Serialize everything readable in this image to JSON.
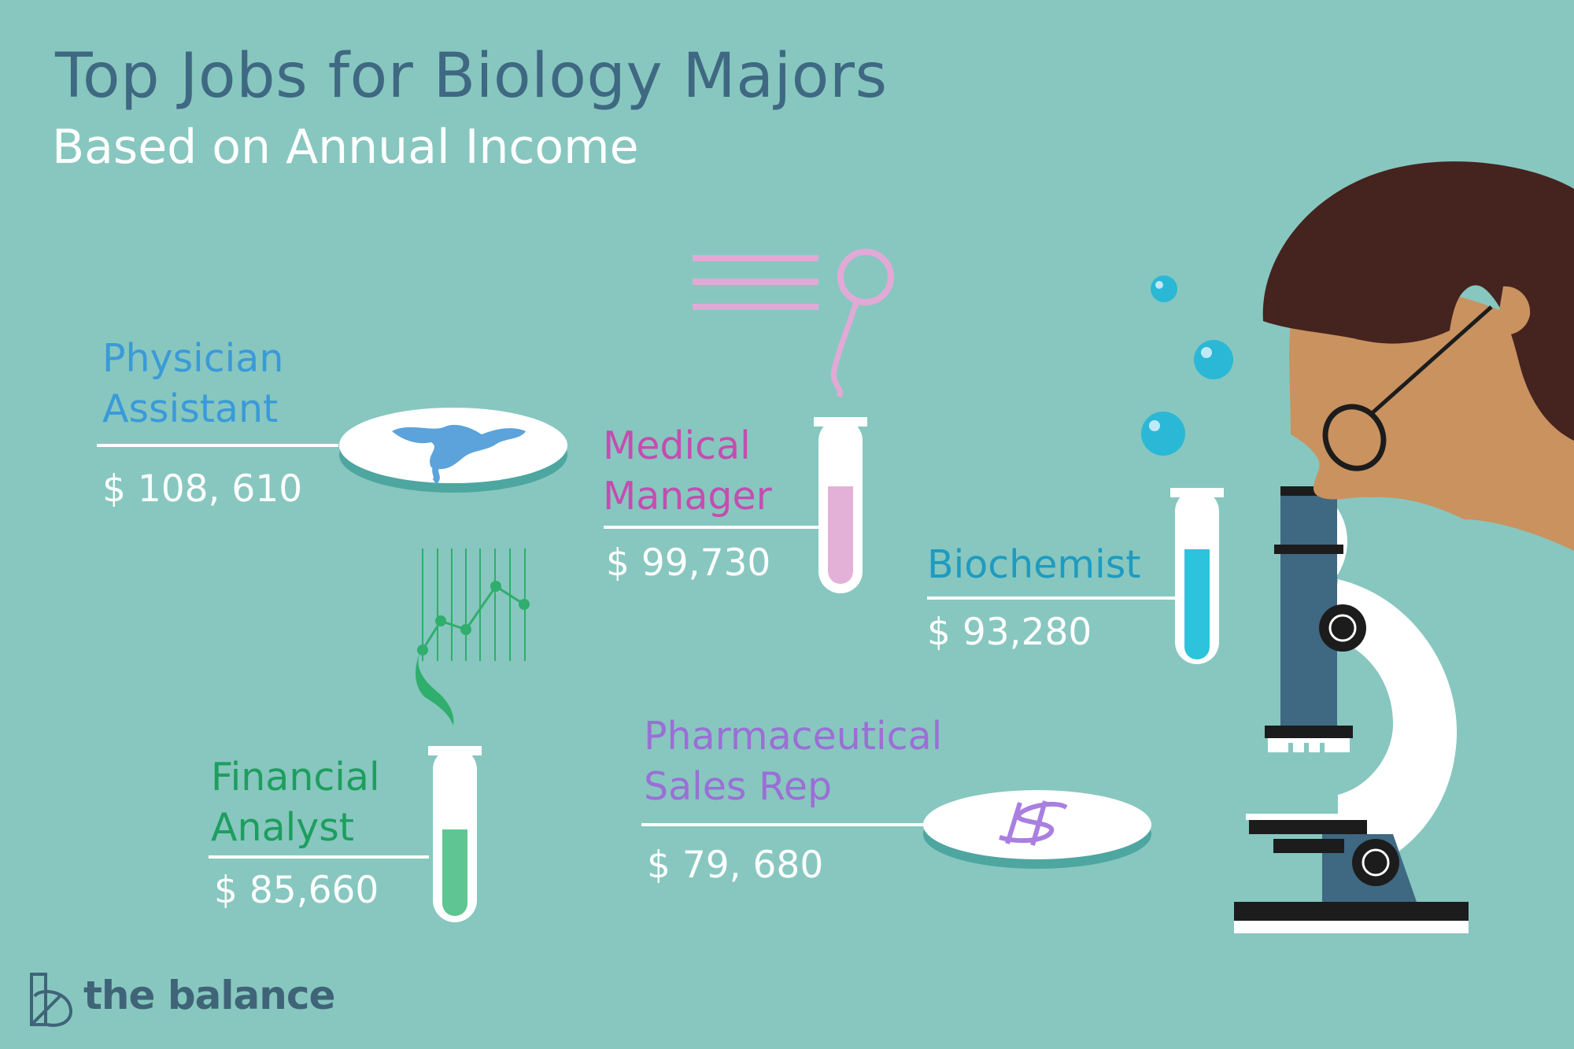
{
  "header": {
    "title": "Top Jobs for Biology Majors",
    "subtitle": "Based on Annual Income"
  },
  "jobs": [
    {
      "title": "Physician\nAssistant",
      "salary": "$ 108, 610",
      "color": "#3a9ad9"
    },
    {
      "title": "Medical\nManager",
      "salary": "$ 99,730",
      "color": "#c44db0"
    },
    {
      "title": "Biochemist",
      "salary": "$ 93,280",
      "color": "#1f9bc0"
    },
    {
      "title": "Financial\nAnalyst",
      "salary": "$ 85,660",
      "color": "#1e9e5e"
    },
    {
      "title": "Pharmaceutical\nSales Rep",
      "salary": "$ 79, 680",
      "color": "#9b6fd6"
    }
  ],
  "brand": {
    "name": "the balance",
    "logo_icon": "balance-logo-icon"
  },
  "colors": {
    "background": "#87c7bf",
    "title": "#3f6882",
    "microscope_body": "#3f6882",
    "hair": "#45231f",
    "skin": "#c9925f"
  }
}
